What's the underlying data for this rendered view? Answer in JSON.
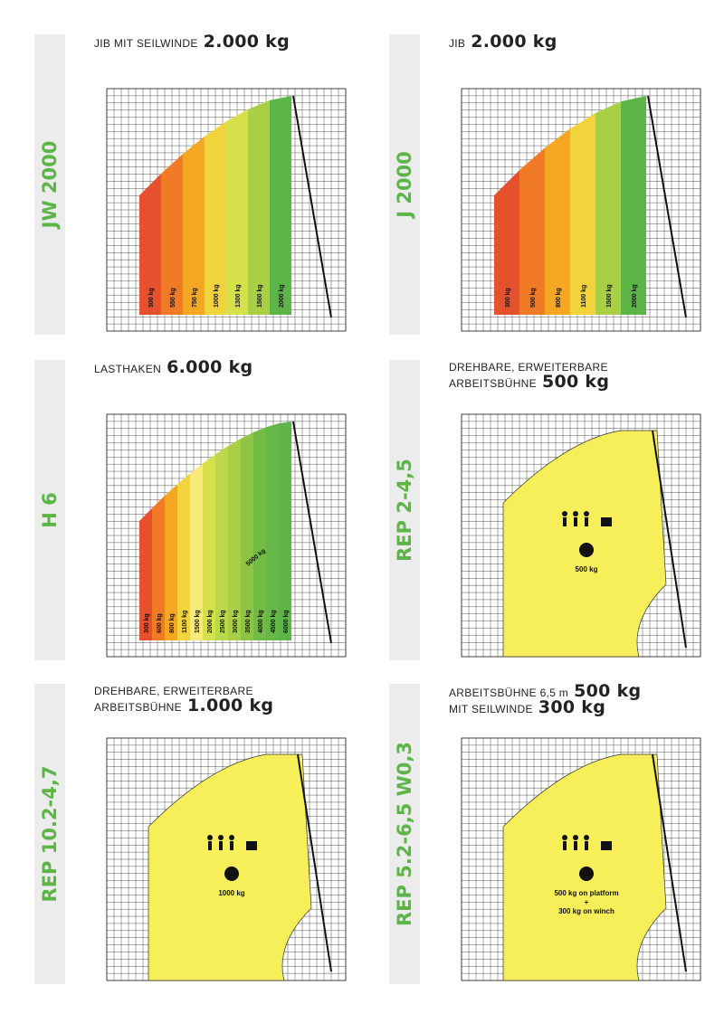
{
  "panels": [
    {
      "code": "JW 2000",
      "line1": "JIB MIT SEILWINDE",
      "line2": "",
      "capacity": "2.000 kg",
      "capacity2": "",
      "chart": "green",
      "bands": [
        {
          "label": "300 kg",
          "color": "#e6512d"
        },
        {
          "label": "550 kg",
          "color": "#f07a26"
        },
        {
          "label": "750 kg",
          "color": "#f5a623"
        },
        {
          "label": "1000 kg",
          "color": "#f2d33c"
        },
        {
          "label": "1300 kg",
          "color": "#d6e04a"
        },
        {
          "label": "1500 kg",
          "color": "#a9cf45"
        },
        {
          "label": "2000 kg",
          "color": "#5db548"
        }
      ]
    },
    {
      "code": "J 2000",
      "line1": "JIB",
      "line2": "",
      "capacity": "2.000 kg",
      "capacity2": "",
      "chart": "green",
      "bands": [
        {
          "label": "300 kg",
          "color": "#e6512d"
        },
        {
          "label": "500 kg",
          "color": "#f07a26"
        },
        {
          "label": "800 kg",
          "color": "#f5a623"
        },
        {
          "label": "1100 kg",
          "color": "#f2d33c"
        },
        {
          "label": "1500 kg",
          "color": "#a9cf45"
        },
        {
          "label": "2000 kg",
          "color": "#5db548"
        }
      ]
    },
    {
      "code": "H 6",
      "line1": "LASTHAKEN",
      "line2": "",
      "capacity": "6.000 kg",
      "capacity2": "",
      "chart": "green",
      "bands": [
        {
          "label": "300 kg",
          "color": "#e6512d"
        },
        {
          "label": "600 kg",
          "color": "#f07a26"
        },
        {
          "label": "800 kg",
          "color": "#f5a623"
        },
        {
          "label": "1100 kg",
          "color": "#f2d33c"
        },
        {
          "label": "1500 kg",
          "color": "#f7e97a"
        },
        {
          "label": "2000 kg",
          "color": "#d6e04a"
        },
        {
          "label": "2500 kg",
          "color": "#bcd84a"
        },
        {
          "label": "3000 kg",
          "color": "#a9cf45"
        },
        {
          "label": "3500 kg",
          "color": "#8dc444"
        },
        {
          "label": "4000 kg",
          "color": "#74bb46"
        },
        {
          "label": "4500 kg",
          "color": "#66b747"
        },
        {
          "label": "6000 kg",
          "color": "#5db548"
        }
      ],
      "extra": "5000 kg"
    },
    {
      "code": "REP 2-4,5",
      "line1": "DREHBARE, ERWEITERBARE",
      "line2": "ARBEITSBÜHNE",
      "capacity": "500 kg",
      "capacity2": "",
      "chart": "yellow",
      "area_labels": [
        "500 kg"
      ]
    },
    {
      "code": "REP 10.2-4,7",
      "line1": "DREHBARE, ERWEITERBARE",
      "line2": "ARBEITSBÜHNE",
      "capacity": "1.000 kg",
      "capacity2": "",
      "chart": "yellow",
      "area_labels": [
        "1000 kg"
      ]
    },
    {
      "code": "REP 5.2-6,5 W0,3",
      "line1": "ARBEITSBÜHNE 6,5 m",
      "line2": "MIT SEILWINDE",
      "capacity": "500 kg",
      "capacity2": "300 kg",
      "chart": "yellow",
      "area_labels": [
        "500 kg on platform",
        "+",
        "300 kg on winch"
      ]
    }
  ],
  "colors": {
    "brand_green": "#5db548",
    "platform_yellow": "#f6ef5a",
    "grid": "#555555"
  }
}
